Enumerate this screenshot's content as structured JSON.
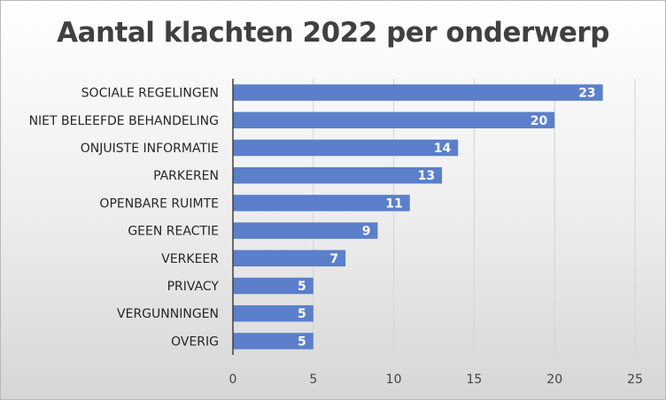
{
  "chart_data": {
    "type": "bar",
    "orientation": "horizontal",
    "title": "Aantal klachten 2022 per onderwerp",
    "categories": [
      "SOCIALE REGELINGEN",
      "NIET BELEEFDE BEHANDELING",
      "ONJUISTE INFORMATIE",
      "PARKEREN",
      "OPENBARE RUIMTE",
      "GEEN REACTIE",
      "VERKEER",
      "PRIVACY",
      "VERGUNNINGEN",
      "OVERIG"
    ],
    "values": [
      23,
      20,
      14,
      13,
      11,
      9,
      7,
      5,
      5,
      5
    ],
    "xlim": [
      0,
      25
    ],
    "xticks": [
      0,
      5,
      10,
      15,
      20,
      25
    ],
    "xlabel": "",
    "ylabel": "",
    "grid": true,
    "data_labels": true,
    "legend": "none",
    "colors": {
      "bar": "#5B7FCB",
      "grid": "#d3d3d3",
      "axis": "#404040"
    }
  }
}
